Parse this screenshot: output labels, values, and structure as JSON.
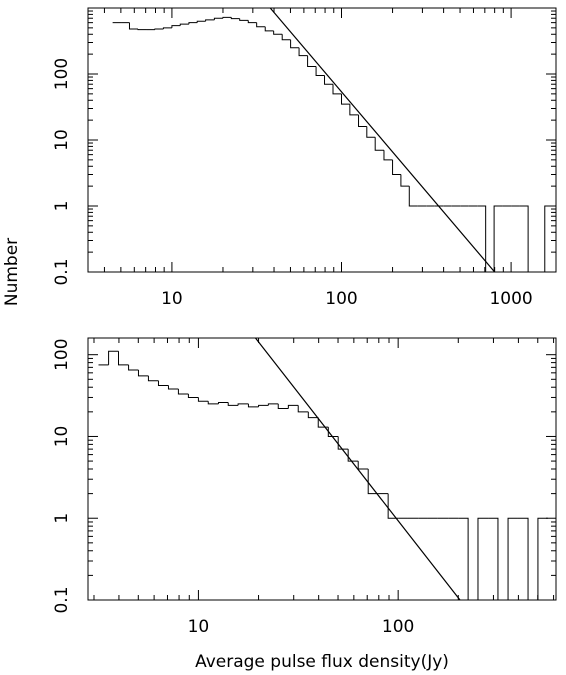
{
  "chart_data": [
    {
      "type": "histogram",
      "xscale": "log",
      "yscale": "log",
      "color": "#000000",
      "ylabel": "Number",
      "bins": [
        4.47,
        5.01,
        5.62,
        6.31,
        7.08,
        7.94,
        8.91,
        10,
        11.2,
        12.6,
        14.1,
        15.8,
        17.8,
        20,
        22.4,
        25.1,
        28.2,
        31.6,
        35.5,
        39.8,
        44.7,
        50.1,
        56.2,
        63.1,
        70.8,
        79.4,
        89.1,
        100,
        112,
        126,
        141,
        158,
        178,
        200,
        224,
        251,
        282,
        316,
        355,
        398,
        447,
        501,
        562,
        631,
        708,
        794,
        891,
        1000,
        1120,
        1260,
        1410,
        1580,
        1780
      ],
      "values": [
        600,
        600,
        480,
        470,
        470,
        480,
        500,
        540,
        570,
        600,
        630,
        660,
        700,
        720,
        690,
        650,
        600,
        520,
        450,
        400,
        330,
        250,
        190,
        130,
        95,
        70,
        50,
        35,
        24,
        16,
        11,
        7,
        5,
        3,
        2,
        1,
        1,
        1,
        1,
        1,
        1,
        1,
        1,
        1,
        null,
        1,
        1,
        1,
        1,
        null,
        null,
        1
      ],
      "fit": {
        "x": [
          38,
          800
        ],
        "values": [
          1000,
          0.1
        ]
      },
      "xlim": [
        3.2,
        1840
      ],
      "ylim": [
        0.1,
        1000
      ],
      "xticks": [
        10,
        100,
        1000
      ],
      "yticks": [
        0.1,
        1,
        10,
        100
      ]
    },
    {
      "type": "histogram",
      "xscale": "log",
      "yscale": "log",
      "color": "#000000",
      "xlabel": "Average pulse flux density(Jy)",
      "bins": [
        3.16,
        3.55,
        3.98,
        4.47,
        5.01,
        5.62,
        6.31,
        7.08,
        7.94,
        8.91,
        10,
        11.2,
        12.6,
        14.1,
        15.8,
        17.8,
        20,
        22.4,
        25.1,
        28.2,
        31.6,
        35.5,
        39.8,
        44.7,
        50.1,
        56.2,
        63.1,
        70.8,
        79.4,
        89.1,
        100,
        112,
        126,
        141,
        158,
        178,
        200,
        224,
        251,
        282,
        316,
        355,
        398,
        447,
        501,
        562
      ],
      "values": [
        75,
        110,
        75,
        65,
        55,
        48,
        42,
        38,
        33,
        30,
        27,
        25,
        26,
        24,
        25,
        23,
        24,
        25,
        22,
        24,
        20,
        17,
        13,
        10,
        7,
        5,
        4,
        2,
        2,
        1,
        1,
        1,
        1,
        1,
        1,
        1,
        1,
        null,
        1,
        1,
        null,
        1,
        1,
        null,
        1
      ],
      "fit": {
        "x": [
          19.3,
          204
        ],
        "values": [
          160,
          0.1
        ]
      },
      "xlim": [
        2.8,
        617
      ],
      "ylim": [
        0.1,
        160
      ],
      "xticks": [
        10,
        100
      ],
      "yticks": [
        0.1,
        1,
        10,
        100
      ]
    }
  ]
}
